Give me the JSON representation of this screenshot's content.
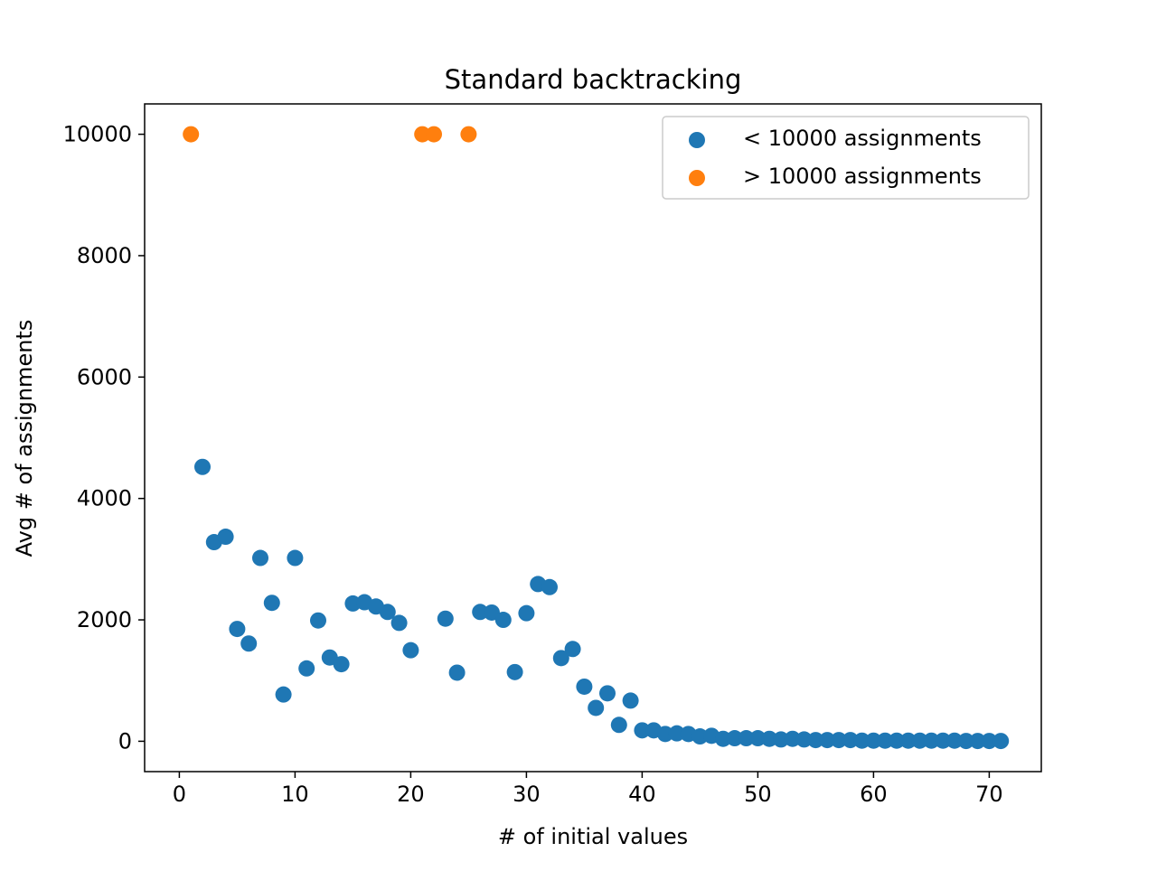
{
  "colors": {
    "series_below": "#1f77b4",
    "series_above": "#ff7f0e",
    "axes": "#000000",
    "legend_border": "#cccccc",
    "background": "#ffffff"
  },
  "chart_data": {
    "type": "scatter",
    "title": "Standard backtracking",
    "xlabel": "# of initial values",
    "ylabel": "Avg # of assignments",
    "xlim": [
      -3,
      74.5
    ],
    "ylim": [
      -500,
      10500
    ],
    "x_ticks": [
      0,
      10,
      20,
      30,
      40,
      50,
      60,
      70
    ],
    "y_ticks": [
      0,
      2000,
      4000,
      6000,
      8000,
      10000
    ],
    "grid": false,
    "legend_position": "top-right",
    "series": [
      {
        "name": "< 10000 assignments",
        "color": "#1f77b4",
        "points": [
          [
            2,
            4520
          ],
          [
            3,
            3280
          ],
          [
            4,
            3370
          ],
          [
            5,
            1850
          ],
          [
            6,
            1610
          ],
          [
            7,
            3020
          ],
          [
            8,
            2280
          ],
          [
            9,
            770
          ],
          [
            10,
            3020
          ],
          [
            11,
            1200
          ],
          [
            12,
            1990
          ],
          [
            13,
            1380
          ],
          [
            14,
            1270
          ],
          [
            15,
            2270
          ],
          [
            16,
            2290
          ],
          [
            17,
            2220
          ],
          [
            18,
            2130
          ],
          [
            19,
            1950
          ],
          [
            20,
            1500
          ],
          [
            23,
            2020
          ],
          [
            24,
            1130
          ],
          [
            26,
            2130
          ],
          [
            27,
            2120
          ],
          [
            28,
            2000
          ],
          [
            29,
            1140
          ],
          [
            30,
            2110
          ],
          [
            31,
            2590
          ],
          [
            32,
            2540
          ],
          [
            33,
            1370
          ],
          [
            34,
            1520
          ],
          [
            35,
            900
          ],
          [
            36,
            550
          ],
          [
            37,
            790
          ],
          [
            38,
            270
          ],
          [
            39,
            670
          ],
          [
            40,
            180
          ],
          [
            41,
            180
          ],
          [
            42,
            120
          ],
          [
            43,
            130
          ],
          [
            44,
            120
          ],
          [
            45,
            80
          ],
          [
            46,
            90
          ],
          [
            47,
            40
          ],
          [
            48,
            50
          ],
          [
            49,
            50
          ],
          [
            50,
            50
          ],
          [
            51,
            40
          ],
          [
            52,
            30
          ],
          [
            53,
            40
          ],
          [
            54,
            30
          ],
          [
            55,
            20
          ],
          [
            56,
            20
          ],
          [
            57,
            20
          ],
          [
            58,
            20
          ],
          [
            59,
            10
          ],
          [
            60,
            10
          ],
          [
            61,
            10
          ],
          [
            62,
            10
          ],
          [
            63,
            10
          ],
          [
            64,
            10
          ],
          [
            65,
            10
          ],
          [
            66,
            10
          ],
          [
            67,
            10
          ],
          [
            68,
            5
          ],
          [
            69,
            5
          ],
          [
            70,
            5
          ],
          [
            71,
            5
          ]
        ]
      },
      {
        "name": "> 10000 assignments",
        "color": "#ff7f0e",
        "points": [
          [
            1,
            10000
          ],
          [
            21,
            10000
          ],
          [
            22,
            10000
          ],
          [
            25,
            10000
          ]
        ]
      }
    ]
  }
}
